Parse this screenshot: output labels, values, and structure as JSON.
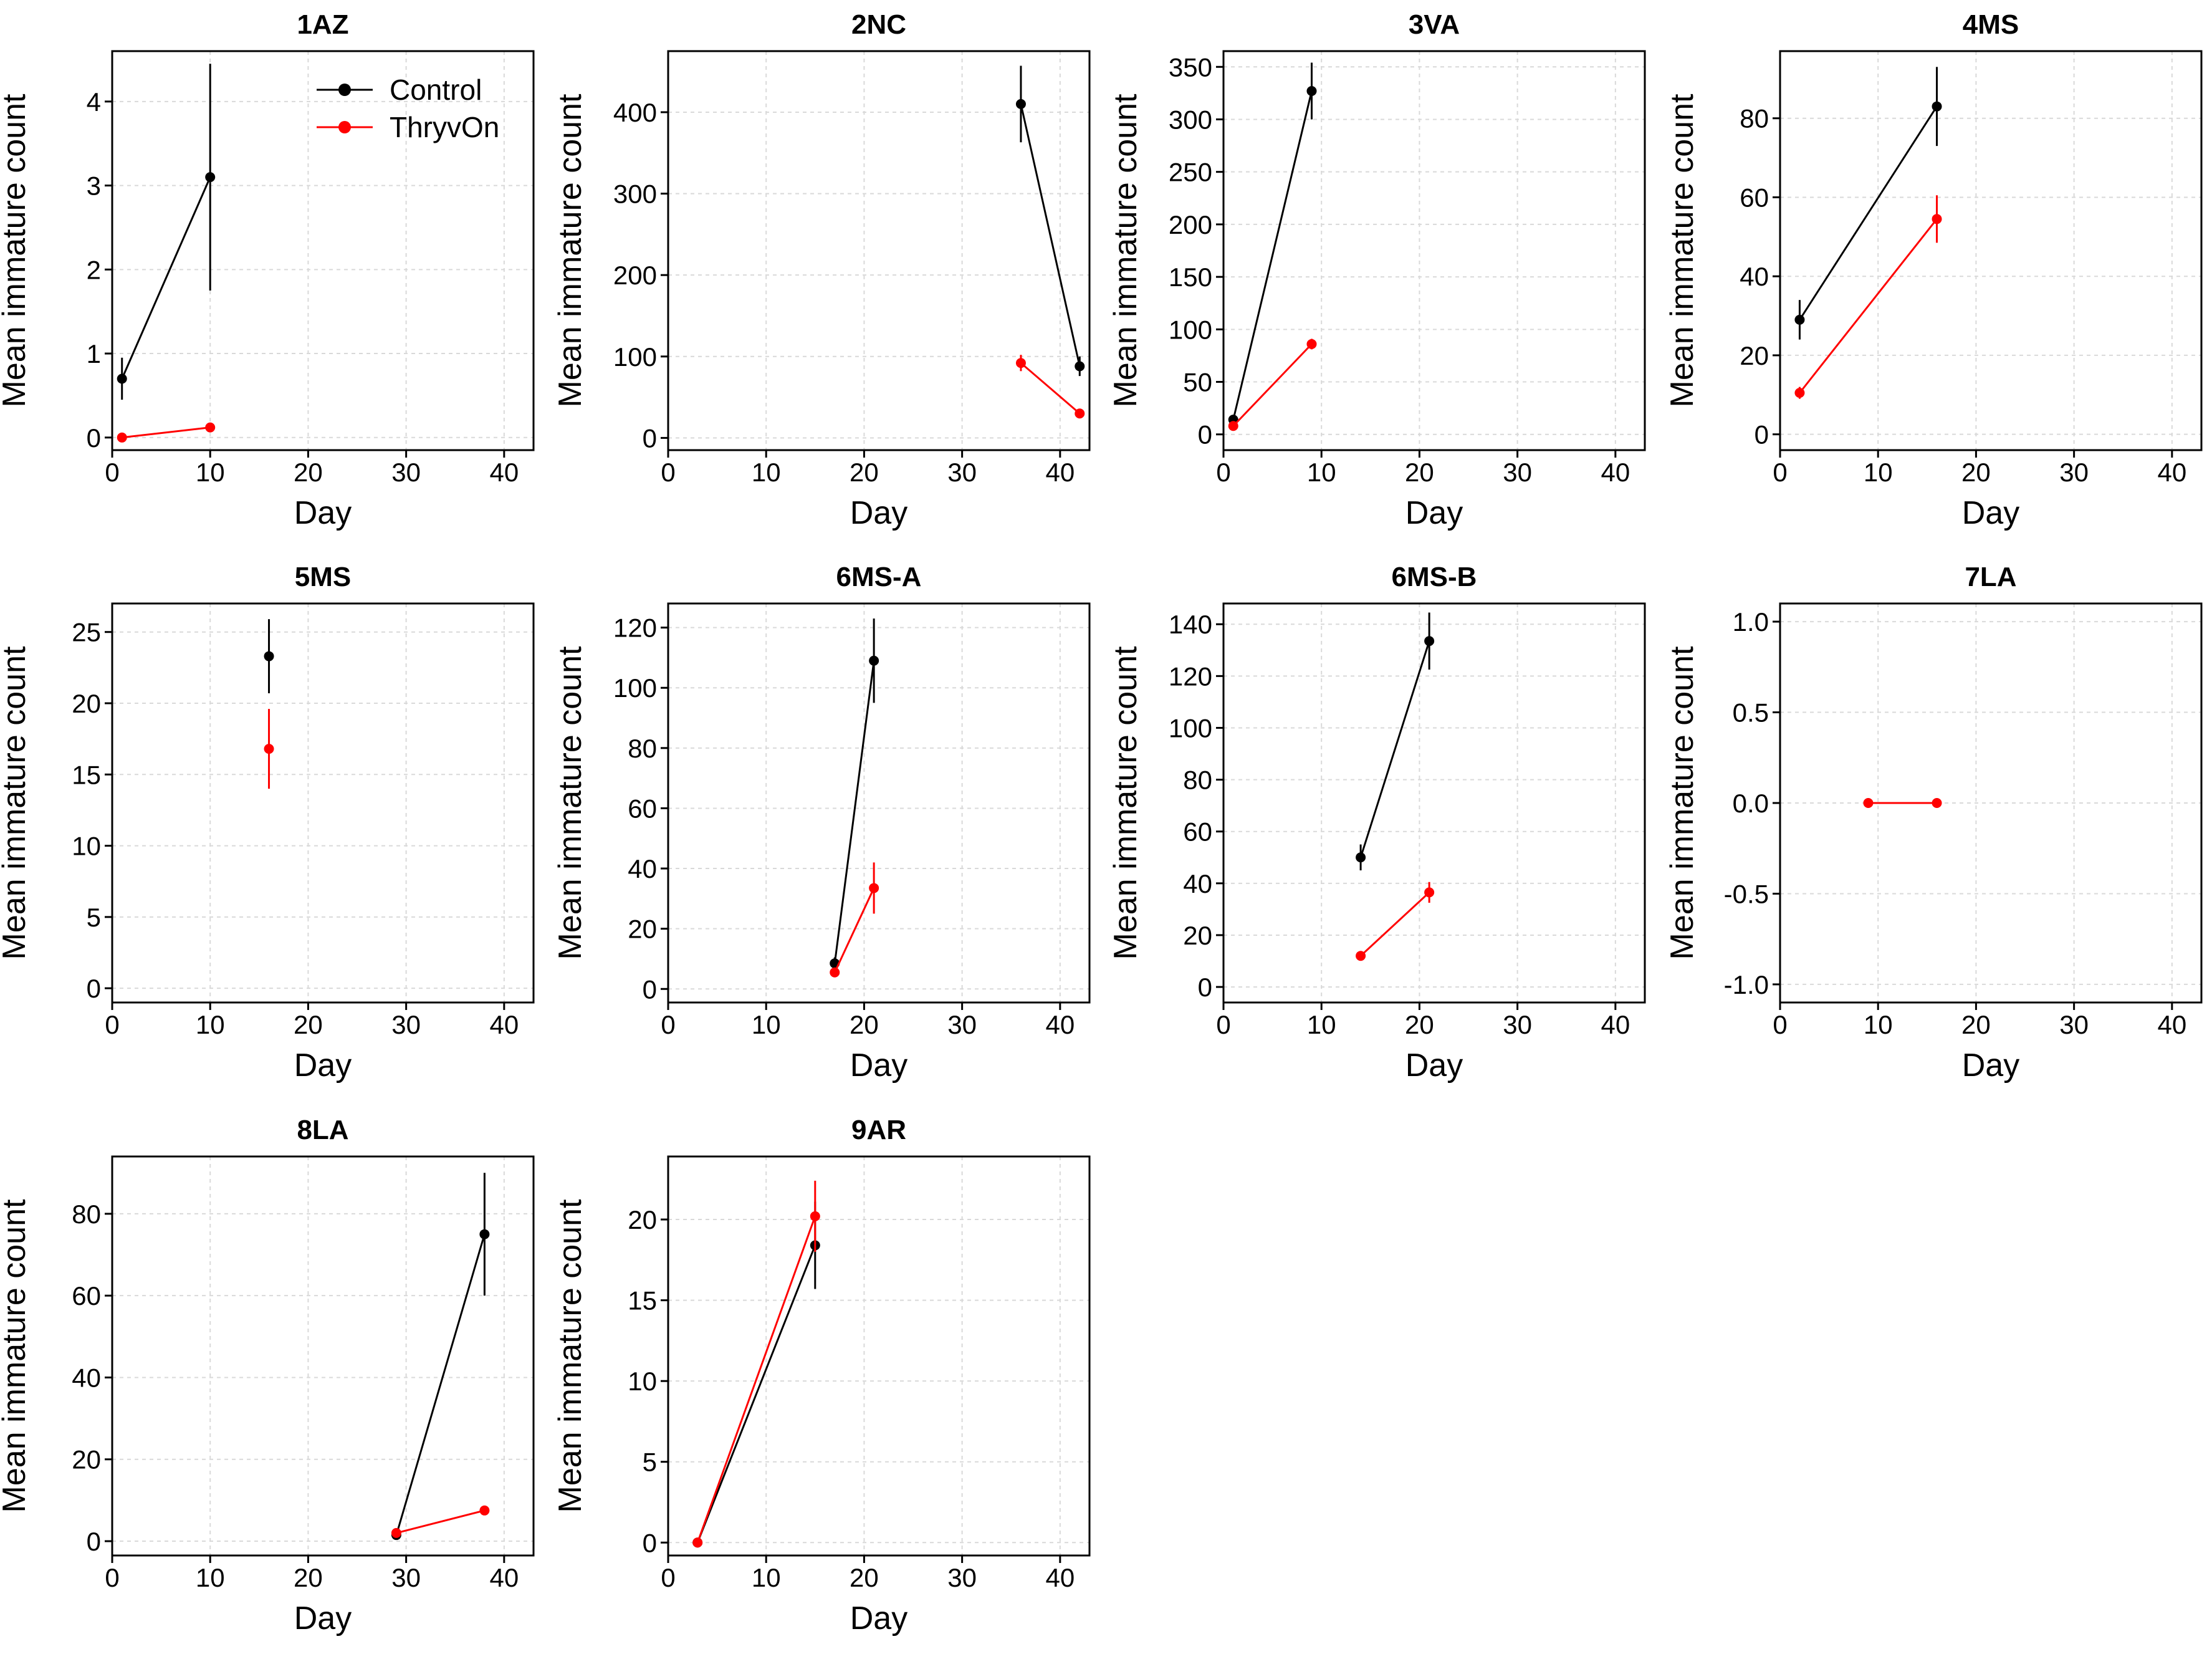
{
  "figure": {
    "xlabel": "Day",
    "ylabel": "Mean immature count",
    "legend": [
      {
        "name": "Control",
        "color": "#000000"
      },
      {
        "name": "ThryvOn",
        "color": "#ff0000"
      }
    ]
  },
  "chart_data": [
    {
      "type": "line",
      "title": "1AZ",
      "xlabel": "Day",
      "ylabel": "Mean immature count",
      "xlim": [
        0,
        43
      ],
      "xticks": [
        0,
        10,
        20,
        30,
        40
      ],
      "ylim": [
        -0.15,
        4.6
      ],
      "yticks": [
        0,
        1,
        2,
        3,
        4
      ],
      "legend_position": "top-right",
      "series": [
        {
          "name": "Control",
          "color": "#000000",
          "x": [
            1,
            10
          ],
          "y": [
            0.7,
            3.1
          ],
          "err": [
            0.25,
            1.35
          ]
        },
        {
          "name": "ThryvOn",
          "color": "#ff0000",
          "x": [
            1,
            10
          ],
          "y": [
            0.0,
            0.12
          ],
          "err": [
            0.02,
            0.05
          ]
        }
      ]
    },
    {
      "type": "line",
      "title": "2NC",
      "xlabel": "Day",
      "ylabel": "Mean immature count",
      "xlim": [
        0,
        43
      ],
      "xticks": [
        0,
        10,
        20,
        30,
        40
      ],
      "ylim": [
        -15,
        475
      ],
      "yticks": [
        0,
        100,
        200,
        300,
        400
      ],
      "series": [
        {
          "name": "Control",
          "color": "#000000",
          "x": [
            36,
            42
          ],
          "y": [
            410,
            88
          ],
          "err": [
            47,
            12
          ]
        },
        {
          "name": "ThryvOn",
          "color": "#ff0000",
          "x": [
            36,
            42
          ],
          "y": [
            92,
            30
          ],
          "err": [
            10,
            4
          ]
        }
      ]
    },
    {
      "type": "line",
      "title": "3VA",
      "xlabel": "Day",
      "ylabel": "Mean immature count",
      "xlim": [
        0,
        43
      ],
      "xticks": [
        0,
        10,
        20,
        30,
        40
      ],
      "ylim": [
        -15,
        365
      ],
      "yticks": [
        0,
        50,
        100,
        150,
        200,
        250,
        300,
        350
      ],
      "series": [
        {
          "name": "Control",
          "color": "#000000",
          "x": [
            1,
            9
          ],
          "y": [
            14,
            327
          ],
          "err": [
            3,
            27
          ]
        },
        {
          "name": "ThryvOn",
          "color": "#ff0000",
          "x": [
            1,
            9
          ],
          "y": [
            8,
            86
          ],
          "err": [
            2,
            5
          ]
        }
      ]
    },
    {
      "type": "line",
      "title": "4MS",
      "xlabel": "Day",
      "ylabel": "Mean immature count",
      "xlim": [
        0,
        43
      ],
      "xticks": [
        0,
        10,
        20,
        30,
        40
      ],
      "ylim": [
        -4,
        97
      ],
      "yticks": [
        0,
        20,
        40,
        60,
        80
      ],
      "series": [
        {
          "name": "Control",
          "color": "#000000",
          "x": [
            2,
            16
          ],
          "y": [
            29,
            83
          ],
          "err": [
            5,
            10
          ]
        },
        {
          "name": "ThryvOn",
          "color": "#ff0000",
          "x": [
            2,
            16
          ],
          "y": [
            10.5,
            54.5
          ],
          "err": [
            1.5,
            6
          ]
        }
      ]
    },
    {
      "type": "line",
      "title": "5MS",
      "xlabel": "Day",
      "ylabel": "Mean immature count",
      "xlim": [
        0,
        43
      ],
      "xticks": [
        0,
        10,
        20,
        30,
        40
      ],
      "ylim": [
        -1,
        27
      ],
      "yticks": [
        0,
        5,
        10,
        15,
        20,
        25
      ],
      "series": [
        {
          "name": "Control",
          "color": "#000000",
          "x": [
            16
          ],
          "y": [
            23.3
          ],
          "err": [
            2.6
          ]
        },
        {
          "name": "ThryvOn",
          "color": "#ff0000",
          "x": [
            16
          ],
          "y": [
            16.8
          ],
          "err": [
            2.8
          ]
        }
      ]
    },
    {
      "type": "line",
      "title": "6MS-A",
      "xlabel": "Day",
      "ylabel": "Mean immature count",
      "xlim": [
        0,
        43
      ],
      "xticks": [
        0,
        10,
        20,
        30,
        40
      ],
      "ylim": [
        -4.5,
        128
      ],
      "yticks": [
        0,
        20,
        40,
        60,
        80,
        100,
        120
      ],
      "series": [
        {
          "name": "Control",
          "color": "#000000",
          "x": [
            17,
            21
          ],
          "y": [
            8.5,
            109
          ],
          "err": [
            2,
            14
          ]
        },
        {
          "name": "ThryvOn",
          "color": "#ff0000",
          "x": [
            17,
            21
          ],
          "y": [
            5.5,
            33.5
          ],
          "err": [
            1.5,
            8.5
          ]
        }
      ]
    },
    {
      "type": "line",
      "title": "6MS-B",
      "xlabel": "Day",
      "ylabel": "Mean immature count",
      "xlim": [
        0,
        43
      ],
      "xticks": [
        0,
        10,
        20,
        30,
        40
      ],
      "ylim": [
        -6,
        148
      ],
      "yticks": [
        0,
        20,
        40,
        60,
        80,
        100,
        120,
        140
      ],
      "series": [
        {
          "name": "Control",
          "color": "#000000",
          "x": [
            14,
            21
          ],
          "y": [
            50,
            133.5
          ],
          "err": [
            5,
            11
          ]
        },
        {
          "name": "ThryvOn",
          "color": "#ff0000",
          "x": [
            14,
            21
          ],
          "y": [
            12,
            36.5
          ],
          "err": [
            1.5,
            4
          ]
        }
      ]
    },
    {
      "type": "line",
      "title": "7LA",
      "xlabel": "Day",
      "ylabel": "Mean immature count",
      "xlim": [
        0,
        43
      ],
      "xticks": [
        0,
        10,
        20,
        30,
        40
      ],
      "ylim": [
        -1.1,
        1.1
      ],
      "yticks": [
        -1.0,
        -0.5,
        0.0,
        0.5,
        1.0
      ],
      "ytick_labels": [
        "-1.0",
        "-0.5",
        "0.0",
        "0.5",
        "1.0"
      ],
      "series": [
        {
          "name": "ThryvOn",
          "color": "#ff0000",
          "x": [
            9,
            16
          ],
          "y": [
            0.0,
            0.0
          ],
          "err": [
            0,
            0
          ]
        }
      ]
    },
    {
      "type": "line",
      "title": "8LA",
      "xlabel": "Day",
      "ylabel": "Mean immature count",
      "xlim": [
        0,
        43
      ],
      "xticks": [
        0,
        10,
        20,
        30,
        40
      ],
      "ylim": [
        -3.5,
        94
      ],
      "yticks": [
        0,
        20,
        40,
        60,
        80
      ],
      "series": [
        {
          "name": "Control",
          "color": "#000000",
          "x": [
            29,
            38
          ],
          "y": [
            1.5,
            75
          ],
          "err": [
            1,
            15
          ]
        },
        {
          "name": "ThryvOn",
          "color": "#ff0000",
          "x": [
            29,
            38
          ],
          "y": [
            2,
            7.5
          ],
          "err": [
            0.5,
            1
          ]
        }
      ]
    },
    {
      "type": "line",
      "title": "9AR",
      "xlabel": "Day",
      "ylabel": "Mean immature count",
      "xlim": [
        0,
        43
      ],
      "xticks": [
        0,
        10,
        20,
        30,
        40
      ],
      "ylim": [
        -0.8,
        23.9
      ],
      "yticks": [
        0,
        5,
        10,
        15,
        20
      ],
      "series": [
        {
          "name": "Control",
          "color": "#000000",
          "x": [
            3,
            15
          ],
          "y": [
            0,
            18.4
          ],
          "err": [
            0,
            2.7
          ]
        },
        {
          "name": "ThryvOn",
          "color": "#ff0000",
          "x": [
            3,
            15
          ],
          "y": [
            0,
            20.2
          ],
          "err": [
            0,
            2.2
          ]
        }
      ]
    }
  ]
}
